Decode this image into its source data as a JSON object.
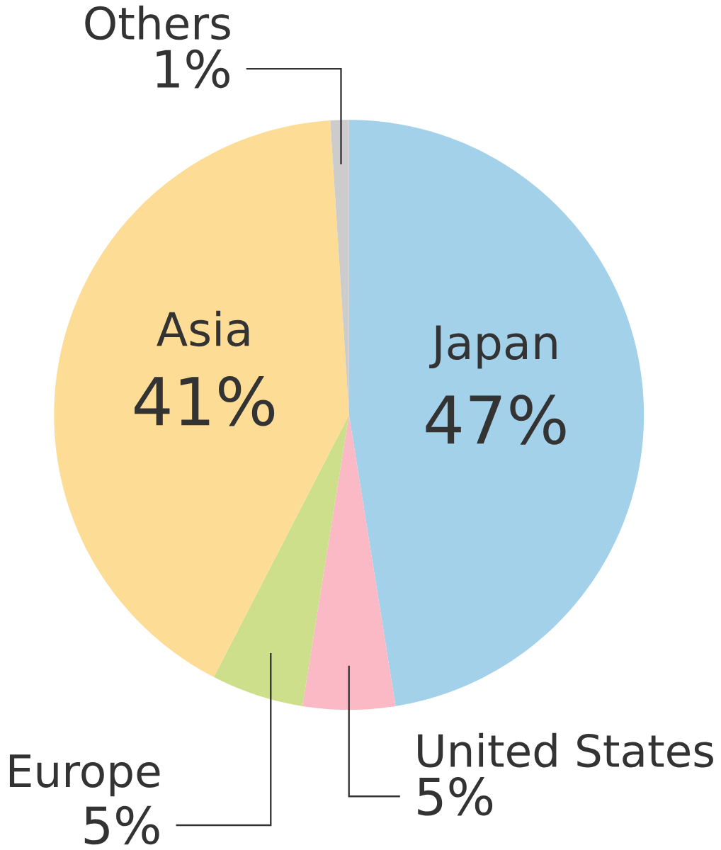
{
  "chart_data": {
    "type": "pie",
    "categories": [
      "Japan",
      "United States",
      "Europe",
      "Asia",
      "Others"
    ],
    "values": [
      47,
      5,
      5,
      41,
      1
    ],
    "colors": [
      "#a3d1ea",
      "#fbb9c5",
      "#cddf8a",
      "#fddc95",
      "#cccccc"
    ],
    "value_labels": [
      "47%",
      "5%",
      "5%",
      "41%",
      "1%"
    ]
  }
}
